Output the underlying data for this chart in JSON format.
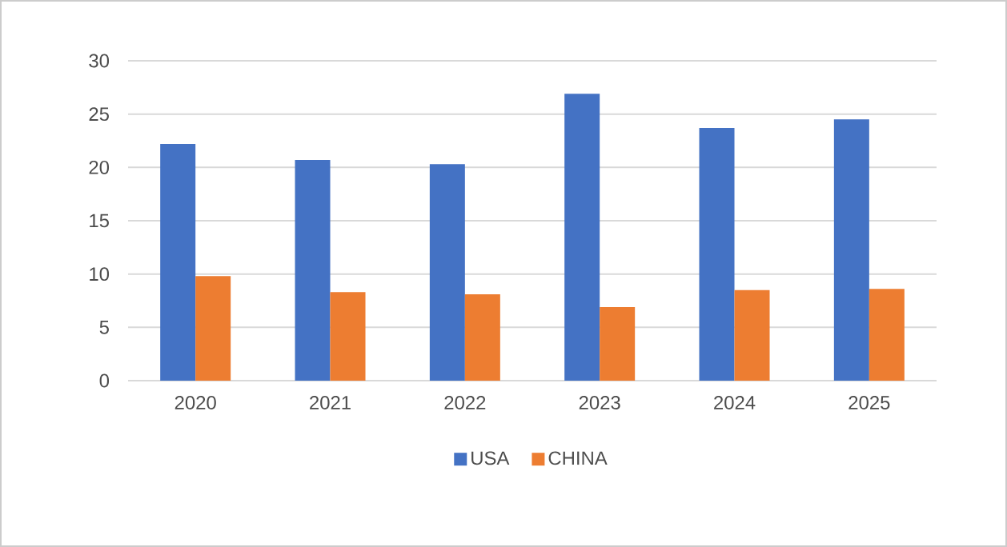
{
  "chart_data": {
    "type": "bar",
    "categories": [
      "2020",
      "2021",
      "2022",
      "2023",
      "2024",
      "2025"
    ],
    "series": [
      {
        "name": "USA",
        "color": "#4472c4",
        "values": [
          22.2,
          20.7,
          20.3,
          26.9,
          23.7,
          24.5
        ]
      },
      {
        "name": "CHINA",
        "color": "#ed7d31",
        "values": [
          9.8,
          8.3,
          8.1,
          6.9,
          8.5,
          8.6
        ]
      }
    ],
    "ylim": [
      0,
      30
    ],
    "yticks": [
      0,
      5,
      10,
      15,
      20,
      25,
      30
    ],
    "grid": "y",
    "legend": "bottom"
  }
}
